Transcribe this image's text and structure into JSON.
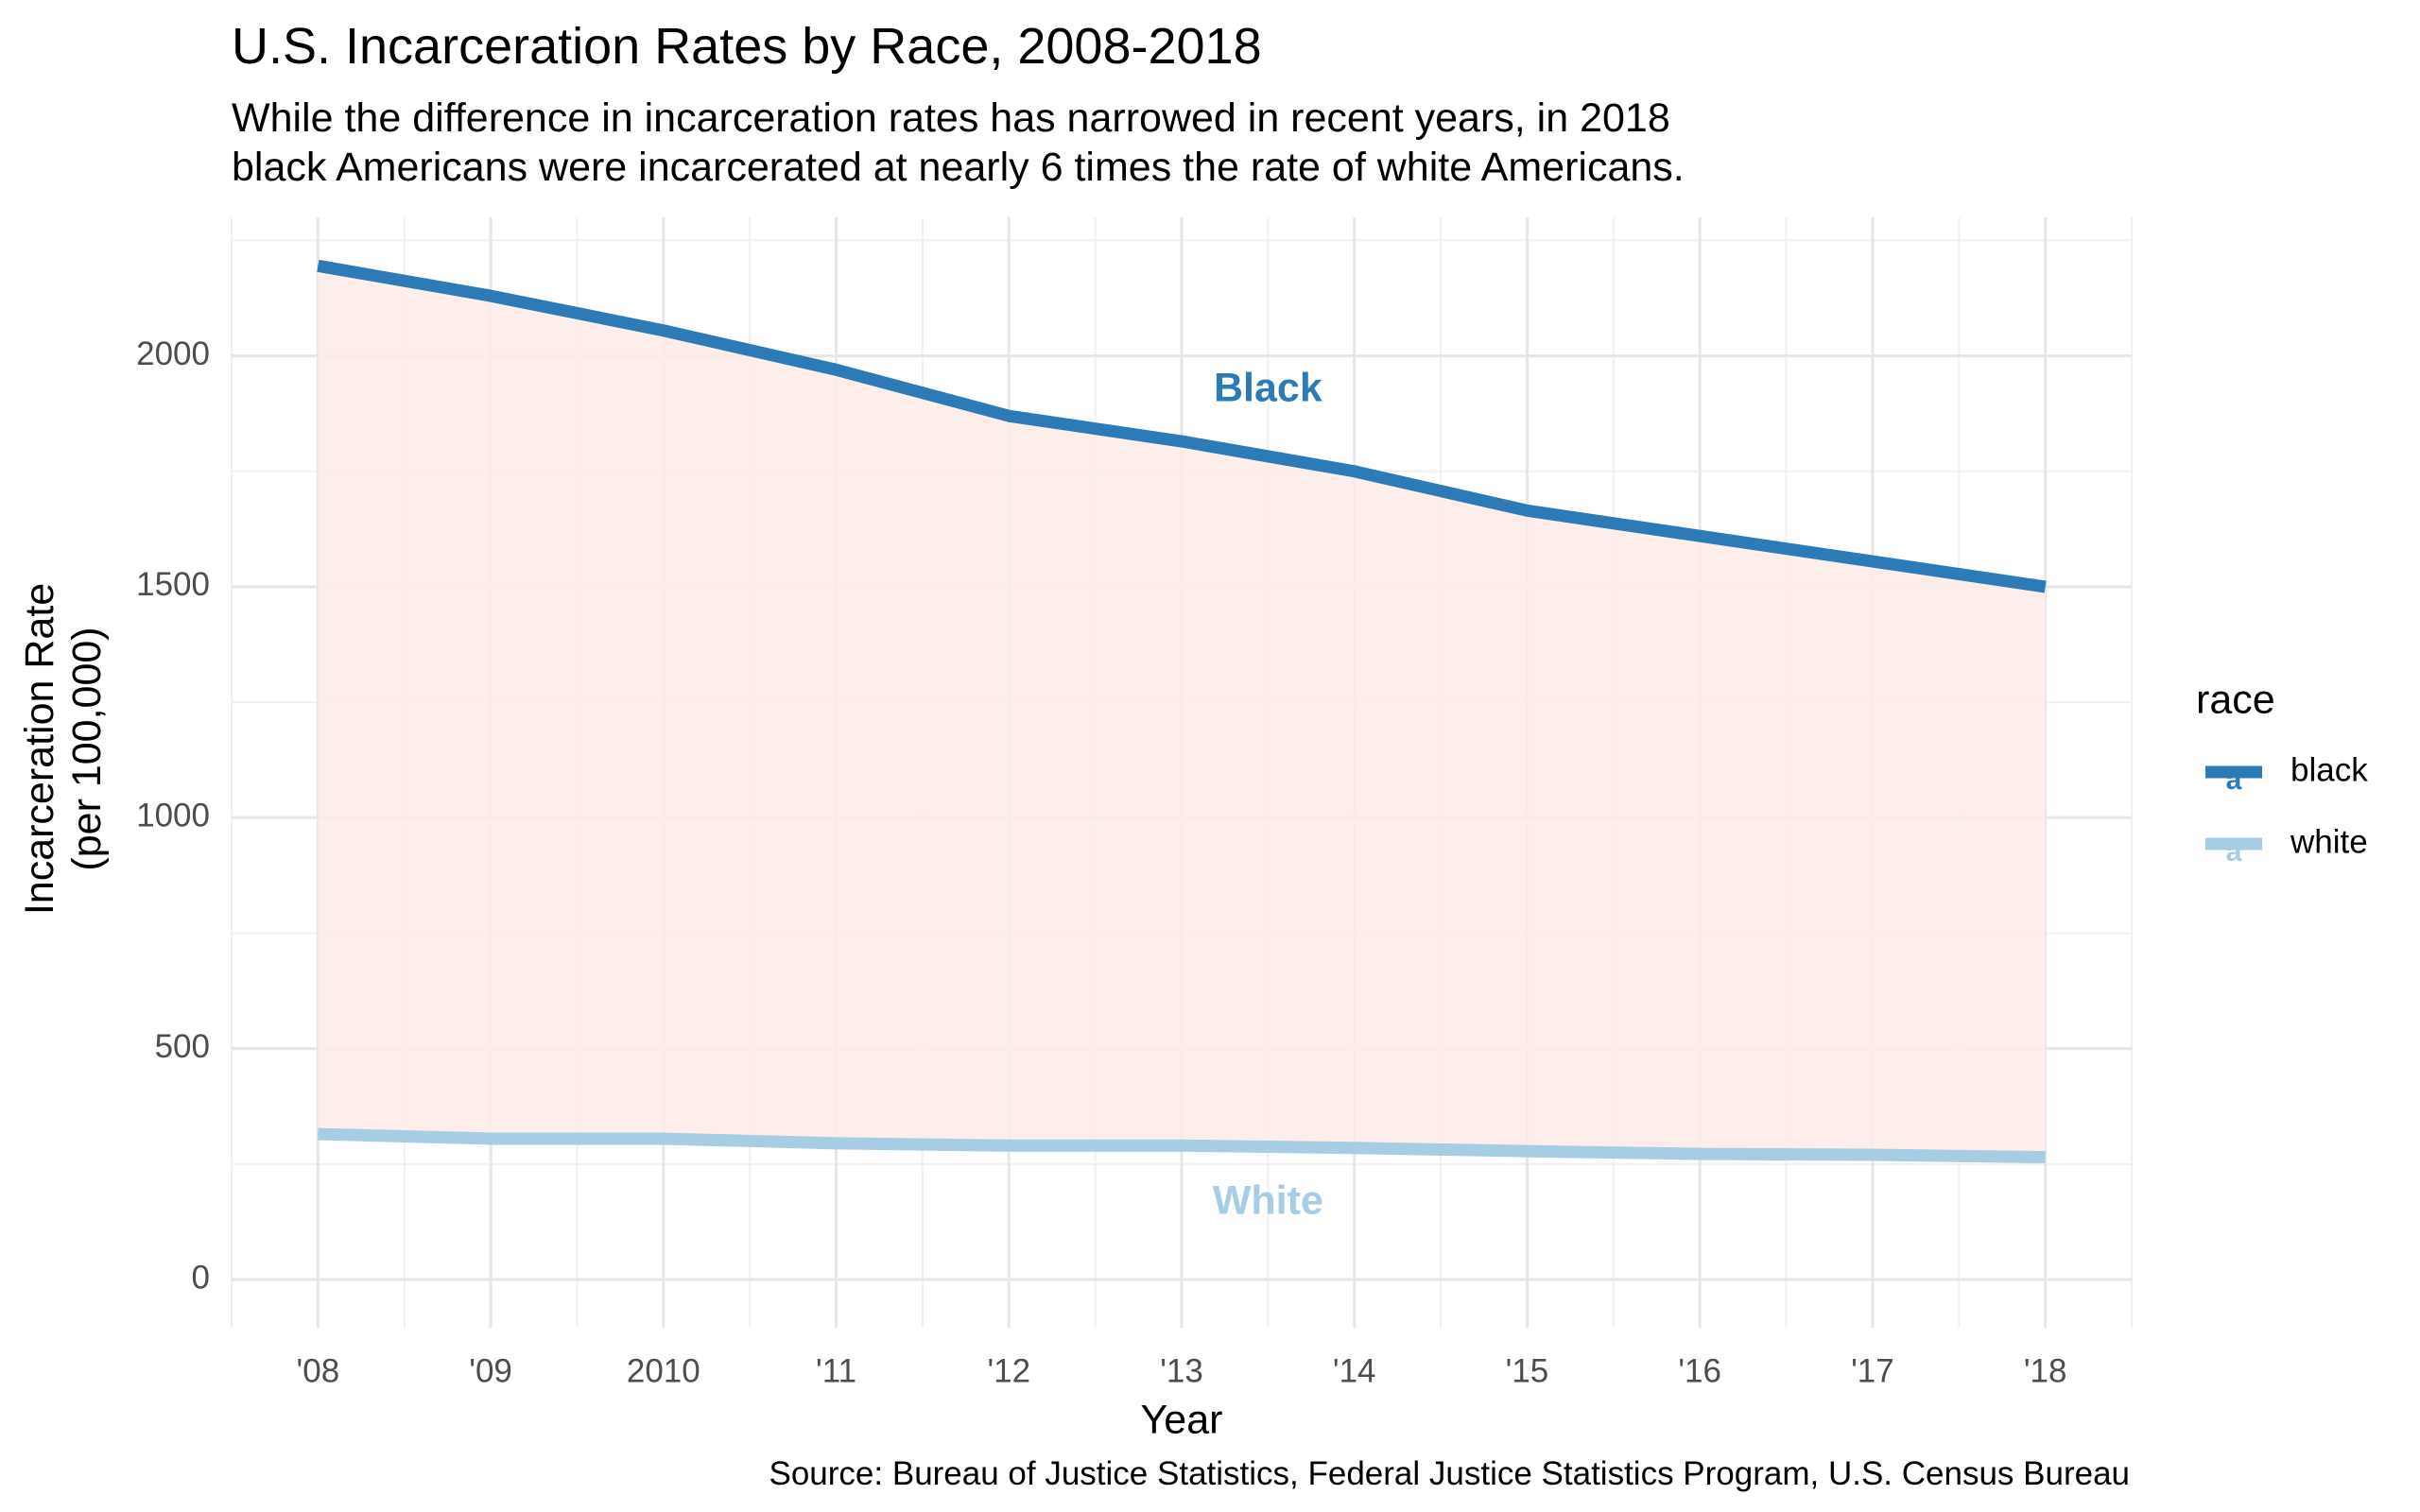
{
  "title": "U.S. Incarceration Rates by Race, 2008-2018",
  "subtitle": [
    "While the difference in incarceration rates has narrowed in recent years, in 2018",
    "black Americans were incarcerated at nearly 6 times the rate of white Americans."
  ],
  "caption": "Source: Bureau of Justice Statistics, Federal Justice Statistics Program, U.S. Census Bureau",
  "legend": {
    "title": "race",
    "placement": "right",
    "glyph": "a",
    "items": [
      {
        "label": "black",
        "color": "#2c7bb6"
      },
      {
        "label": "white",
        "color": "#a6cde3"
      }
    ]
  },
  "chart_data": {
    "type": "line",
    "x": [
      2008,
      2009,
      2010,
      2011,
      2012,
      2013,
      2014,
      2015,
      2016,
      2017,
      2018
    ],
    "x_tick_labels": [
      "'08",
      "'09",
      "2010",
      "'11",
      "'12",
      "'13",
      "'14",
      "'15",
      "'16",
      "'17",
      "'18"
    ],
    "xlabel": "Year",
    "ylabel": "Incarceration Rate\n(per 100,000)",
    "ylabel_lines": [
      "Incarceration Rate",
      "(per 100,000)"
    ],
    "ylim": [
      0,
      2300
    ],
    "y_ticks": [
      0,
      500,
      1000,
      1500,
      2000
    ],
    "grid": true,
    "series": [
      {
        "name": "black",
        "color": "#2c7bb6",
        "values": [
          2195,
          2130,
          2055,
          1970,
          1870,
          1815,
          1750,
          1665,
          1610,
          1555,
          1500
        ]
      },
      {
        "name": "white",
        "color": "#a6cde3",
        "values": [
          315,
          305,
          305,
          295,
          290,
          290,
          285,
          278,
          272,
          270,
          265
        ]
      }
    ],
    "annotations": [
      {
        "text": "Black",
        "x": 2013.5,
        "y": 1925,
        "color": "#2c7bb6"
      },
      {
        "text": "White",
        "x": 2013.5,
        "y": 165,
        "color": "#a6cde3"
      }
    ],
    "ribbon_fill": "#fdebe9"
  }
}
